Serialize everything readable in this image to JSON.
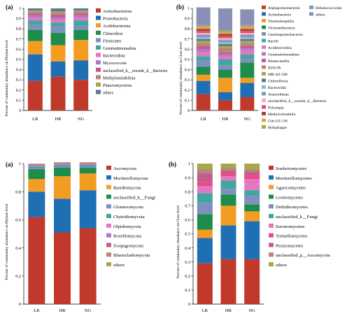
{
  "chart_data": [
    {
      "type": "bar",
      "stacked": true,
      "panel_label": "(a)",
      "ylabel": "Percent of community abundance on Phylum level",
      "categories": [
        "LR",
        "HR",
        "NG"
      ],
      "ylim": [
        0,
        1
      ],
      "yticks": [
        "0",
        "0.1",
        "0.2",
        "0.3",
        "0.4",
        "0.5",
        "0.6",
        "0.7",
        "0.8",
        "0.9",
        "1"
      ],
      "legend_position": "right",
      "series": [
        {
          "name": "Actinobacteriota",
          "color": "#c0392b",
          "values": [
            0.29,
            0.33,
            0.3
          ]
        },
        {
          "name": "Proteobacteria",
          "color": "#1f6fb5",
          "values": [
            0.26,
            0.15,
            0.19
          ]
        },
        {
          "name": "Acidobacteriota",
          "color": "#f39c22",
          "values": [
            0.13,
            0.16,
            0.2
          ]
        },
        {
          "name": "Chloroflexi",
          "color": "#1e8c4a",
          "values": [
            0.11,
            0.12,
            0.1
          ]
        },
        {
          "name": "Firmicutes",
          "color": "#7f8fbf",
          "values": [
            0.05,
            0.06,
            0.04
          ]
        },
        {
          "name": "Gemmatimonadota",
          "color": "#3fa7a0",
          "values": [
            0.04,
            0.04,
            0.05
          ]
        },
        {
          "name": "Bacteroidota",
          "color": "#e377c2",
          "values": [
            0.03,
            0.03,
            0.03
          ]
        },
        {
          "name": "Myxococcota",
          "color": "#b07ac8",
          "values": [
            0.02,
            0.02,
            0.02
          ]
        },
        {
          "name": "unclassified_k__norank_d__Bacteria",
          "color": "#c45b8c",
          "values": [
            0.02,
            0.03,
            0.02
          ]
        },
        {
          "name": "Methylomirabilota",
          "color": "#b5877a",
          "values": [
            0.02,
            0.02,
            0.02
          ]
        },
        {
          "name": "Planctomycetota",
          "color": "#a8a84a",
          "values": [
            0.01,
            0.01,
            0.01
          ]
        },
        {
          "name": "others",
          "color": "#5e7a8a",
          "values": [
            0.02,
            0.03,
            0.02
          ]
        }
      ]
    },
    {
      "type": "bar",
      "stacked": true,
      "panel_label": "(b)",
      "ylabel": "Percent of community abundance on Class level",
      "categories": [
        "LR",
        "HR",
        "NG"
      ],
      "ylim": [
        0,
        1
      ],
      "yticks": [
        "0",
        "0.1",
        "0.2",
        "0.3",
        "0.4",
        "0.5",
        "0.6",
        "0.7",
        "0.8",
        "0.9",
        "1"
      ],
      "legend_position": "right",
      "series": [
        {
          "name": "Alphaproteobacteria",
          "color": "#c0392b",
          "values": [
            0.16,
            0.1,
            0.13
          ]
        },
        {
          "name": "Actinobacteria",
          "color": "#1f6fb5",
          "values": [
            0.13,
            0.08,
            0.14
          ]
        },
        {
          "name": "Thermoleophilia",
          "color": "#f39c22",
          "values": [
            0.06,
            0.14,
            0.05
          ]
        },
        {
          "name": "Vicinamibacteria",
          "color": "#1e8c4a",
          "values": [
            0.08,
            0.08,
            0.15
          ]
        },
        {
          "name": "Gammaproteobacteria",
          "color": "#7f8fbf",
          "values": [
            0.06,
            0.04,
            0.04
          ]
        },
        {
          "name": "Bacilli",
          "color": "#3fa7a0",
          "values": [
            0.04,
            0.06,
            0.04
          ]
        },
        {
          "name": "Acidimicrobiia",
          "color": "#e377c2",
          "values": [
            0.04,
            0.03,
            0.04
          ]
        },
        {
          "name": "Gemmatimonadetes",
          "color": "#b07ac8",
          "values": [
            0.03,
            0.02,
            0.02
          ]
        },
        {
          "name": "Blastocatellia",
          "color": "#c45b8c",
          "values": [
            0.03,
            0.02,
            0.02
          ]
        },
        {
          "name": "KD4-96",
          "color": "#b5877a",
          "values": [
            0.03,
            0.04,
            0.03
          ]
        },
        {
          "name": "MB-A2-108",
          "color": "#a8a84a",
          "values": [
            0.02,
            0.02,
            0.02
          ]
        },
        {
          "name": "Chloroflexia",
          "color": "#5e7a8a",
          "values": [
            0.02,
            0.02,
            0.02
          ]
        },
        {
          "name": "Bacteroidia",
          "color": "#8fb3e0",
          "values": [
            0.02,
            0.02,
            0.02
          ]
        },
        {
          "name": "Anaerolineae",
          "color": "#6aa0a8",
          "values": [
            0.02,
            0.02,
            0.02
          ]
        },
        {
          "name": "unclassified_k__norank_d__Bacteria",
          "color": "#f2a8c8",
          "values": [
            0.02,
            0.02,
            0.02
          ]
        },
        {
          "name": "Polyangia",
          "color": "#e84a6a",
          "values": [
            0.02,
            0.02,
            0.02
          ]
        },
        {
          "name": "Methylomirabilia",
          "color": "#9a4a3a",
          "values": [
            0.02,
            0.02,
            0.02
          ]
        },
        {
          "name": "Gitt-GS-136",
          "color": "#d8a85a",
          "values": [
            0.02,
            0.02,
            0.02
          ]
        },
        {
          "name": "Holophagae",
          "color": "#b8a040",
          "values": [
            0.01,
            0.01,
            0.01
          ]
        },
        {
          "name": "Dehalococcoidia",
          "color": "#7a9aa8",
          "values": [
            0.01,
            0.01,
            0.01
          ]
        },
        {
          "name": "others",
          "color": "#8a8fb5",
          "values": [
            0.17,
            0.21,
            0.15
          ]
        }
      ]
    },
    {
      "type": "bar",
      "stacked": true,
      "panel_label": "(a)",
      "ylabel": "Percent of community abundance on Phylum level",
      "categories": [
        "LR",
        "HR",
        "NG"
      ],
      "ylim": [
        0,
        1
      ],
      "yticks": [
        "0",
        "0.2",
        "0.4",
        "0.6",
        "0.8",
        "1"
      ],
      "legend_position": "right",
      "series": [
        {
          "name": "Ascomycota",
          "color": "#c0392b",
          "values": [
            0.62,
            0.51,
            0.54
          ]
        },
        {
          "name": "Mortierellomycota",
          "color": "#1f6fb5",
          "values": [
            0.18,
            0.24,
            0.27
          ]
        },
        {
          "name": "Basidiomycota",
          "color": "#f39c22",
          "values": [
            0.09,
            0.16,
            0.12
          ]
        },
        {
          "name": "unclassified_k__Fungi",
          "color": "#1e8c4a",
          "values": [
            0.07,
            0.06,
            0.04
          ]
        },
        {
          "name": "Glomeromycota",
          "color": "#7f8fbf",
          "values": [
            0.01,
            0.01,
            0.01
          ]
        },
        {
          "name": "Chytridiomycota",
          "color": "#3fa7a0",
          "values": [
            0.01,
            0.01,
            0.01
          ]
        },
        {
          "name": "Olpidiomycota",
          "color": "#e377c2",
          "values": [
            0.005,
            0.005,
            0.005
          ]
        },
        {
          "name": "Rozellomycota",
          "color": "#b07ac8",
          "values": [
            0.005,
            0.005,
            0.005
          ]
        },
        {
          "name": "Zoopagomycota",
          "color": "#c45b8c",
          "values": [
            0.004,
            0.004,
            0.004
          ]
        },
        {
          "name": "Blastocladiomycota",
          "color": "#b5877a",
          "values": [
            0.003,
            0.003,
            0.003
          ]
        },
        {
          "name": "others",
          "color": "#a8a84a",
          "values": [
            0.003,
            0.003,
            0.003
          ]
        }
      ]
    },
    {
      "type": "bar",
      "stacked": true,
      "panel_label": "(b)",
      "ylabel": "Percent of community abundance on Class level",
      "categories": [
        "LR",
        "HR",
        "NG"
      ],
      "ylim": [
        0,
        1
      ],
      "yticks": [
        "0",
        "0.1",
        "0.2",
        "0.3",
        "0.4",
        "0.5",
        "0.6",
        "0.7",
        "0.8",
        "0.9",
        "1"
      ],
      "legend_position": "right",
      "series": [
        {
          "name": "Sordariomycetes",
          "color": "#c0392b",
          "values": [
            0.29,
            0.32,
            0.32
          ]
        },
        {
          "name": "Mortierellomycetes",
          "color": "#1f6fb5",
          "values": [
            0.18,
            0.24,
            0.27
          ]
        },
        {
          "name": "Agaricomycetes",
          "color": "#f39c22",
          "values": [
            0.06,
            0.14,
            0.07
          ]
        },
        {
          "name": "Leotiomycetes",
          "color": "#1e8c4a",
          "values": [
            0.11,
            0.08,
            0.05
          ]
        },
        {
          "name": "Dothideomycetes",
          "color": "#7f8fbf",
          "values": [
            0.08,
            0.04,
            0.06
          ]
        },
        {
          "name": "unclassified_k__Fungi",
          "color": "#3fa7a0",
          "values": [
            0.07,
            0.06,
            0.04
          ]
        },
        {
          "name": "Eurotiomycetes",
          "color": "#e377c2",
          "values": [
            0.05,
            0.03,
            0.08
          ]
        },
        {
          "name": "Tremellomycetes",
          "color": "#e84a8a",
          "values": [
            0.03,
            0.02,
            0.03
          ]
        },
        {
          "name": "Pezizomycetes",
          "color": "#c45b8c",
          "values": [
            0.06,
            0.02,
            0.02
          ]
        },
        {
          "name": "unclassified_p__Ascomycota",
          "color": "#b5877a",
          "values": [
            0.03,
            0.02,
            0.02
          ]
        },
        {
          "name": "others",
          "color": "#a8a84a",
          "values": [
            0.04,
            0.03,
            0.04
          ]
        }
      ]
    }
  ]
}
